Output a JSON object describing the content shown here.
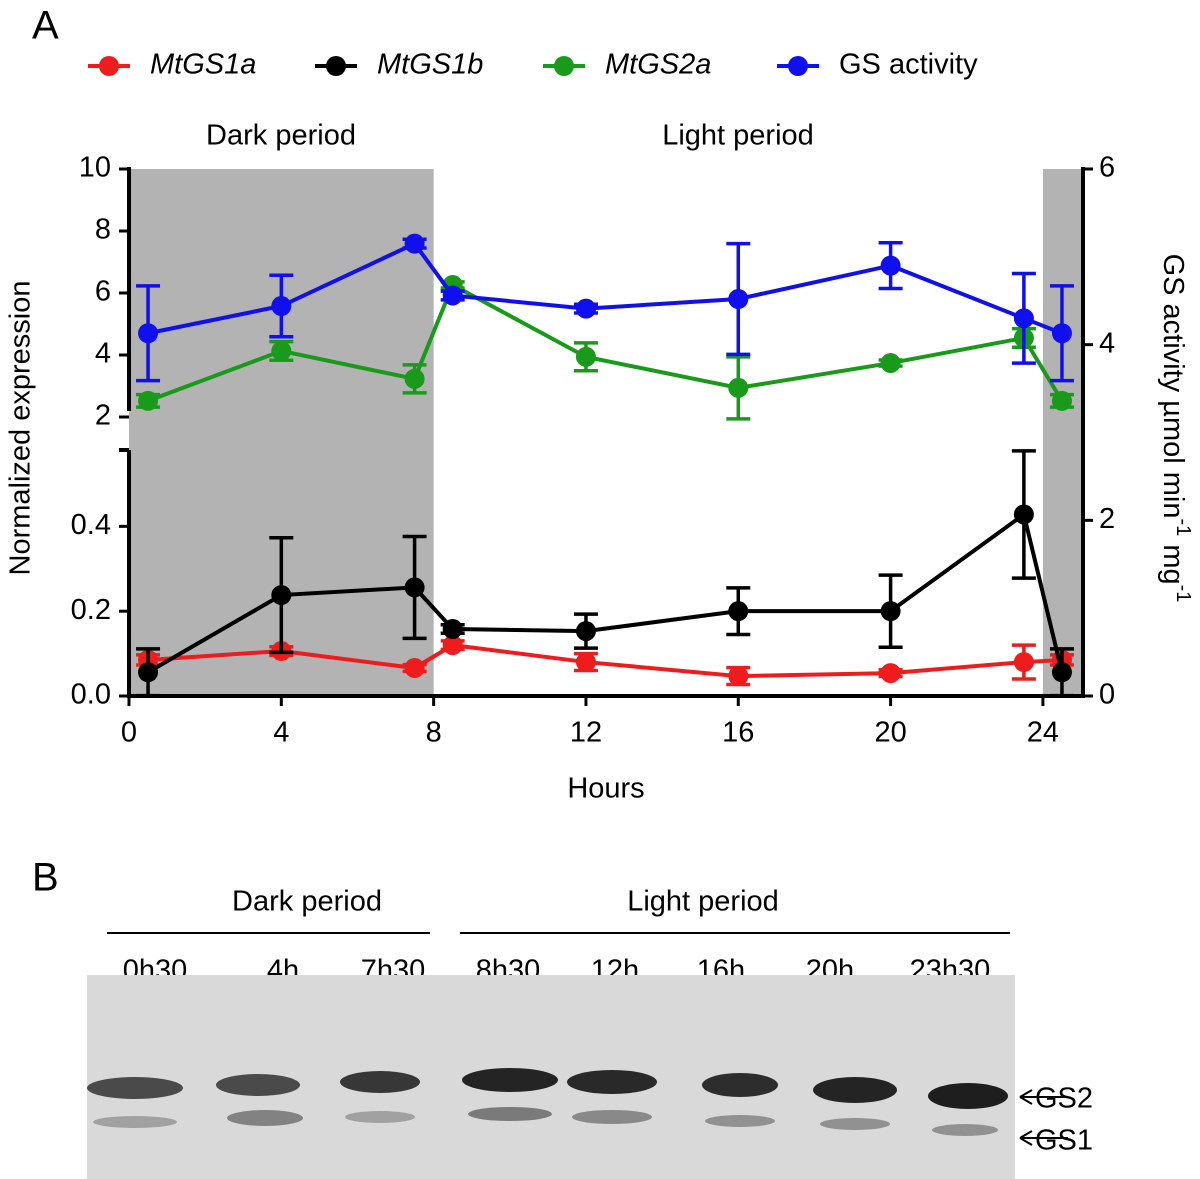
{
  "panel_a_label": "A",
  "panel_b_label": "B",
  "chart_data": {
    "type": "line",
    "x_label": "Hours",
    "y_label": "Normalized expression",
    "y2_label": [
      "GS activity µmol min",
      "-1",
      " mg",
      "-1"
    ],
    "period_labels": [
      "Dark period",
      "Light period"
    ],
    "shaded_periods": [
      [
        0,
        8
      ],
      [
        24,
        25
      ]
    ],
    "x": [
      0.5,
      4,
      7.5,
      8.5,
      12,
      16,
      20,
      23.5,
      24.5
    ],
    "xlim": [
      0,
      25
    ],
    "xticks": [
      0,
      4,
      8,
      12,
      16,
      20,
      24
    ],
    "y_segments": [
      {
        "ylim": [
          0,
          0.58
        ],
        "yticks": [
          {
            "value": 0,
            "label": "0.0"
          },
          0.2,
          0.4
        ]
      },
      {
        "ylim": [
          2,
          10
        ],
        "yticks": [
          2,
          4,
          6,
          8,
          10
        ]
      }
    ],
    "y2lim": [
      0,
      6
    ],
    "y2ticks": [
      0,
      2,
      4,
      6
    ],
    "series": [
      {
        "name": "MtGS1a",
        "color": "#ee1c1c",
        "values": [
          0.085,
          0.106,
          0.066,
          0.12,
          0.08,
          0.047,
          0.054,
          0.08,
          0.085
        ],
        "errors": [
          0.012,
          0.01,
          0.008,
          0.01,
          0.02,
          0.02,
          0.008,
          0.04,
          0.012
        ]
      },
      {
        "name": "MtGS1b",
        "color": "#000000",
        "values": [
          0.056,
          0.238,
          0.256,
          0.158,
          0.153,
          0.2,
          0.2,
          0.428,
          0.056
        ],
        "errors": [
          0.055,
          0.135,
          0.12,
          0.01,
          0.04,
          0.055,
          0.085,
          0.15,
          0.055
        ]
      },
      {
        "name": "MtGS2a",
        "color": "#1a9a1a",
        "values": [
          2.52,
          4.13,
          3.23,
          6.26,
          3.94,
          2.94,
          3.74,
          4.55,
          2.52
        ],
        "errors": [
          0.2,
          0.3,
          0.45,
          0.1,
          0.45,
          1.0,
          0.1,
          0.3,
          0.2
        ]
      },
      {
        "name": "GS activity",
        "color": "#1010ee",
        "axis": "y2",
        "values": [
          4.13,
          4.44,
          5.15,
          4.56,
          4.41,
          4.52,
          4.9,
          4.3,
          4.13
        ],
        "errors": [
          0.54,
          0.35,
          0.05,
          0.05,
          0.05,
          0.63,
          0.26,
          0.51,
          0.54
        ]
      }
    ]
  },
  "blot": {
    "period_labels": [
      "Dark period",
      "Light period"
    ],
    "lanes": [
      "0h30",
      "4h",
      "7h30",
      "8h30",
      "12h",
      "16h",
      "20h",
      "23h30"
    ],
    "bands": [
      "GS2",
      "GS1"
    ]
  }
}
